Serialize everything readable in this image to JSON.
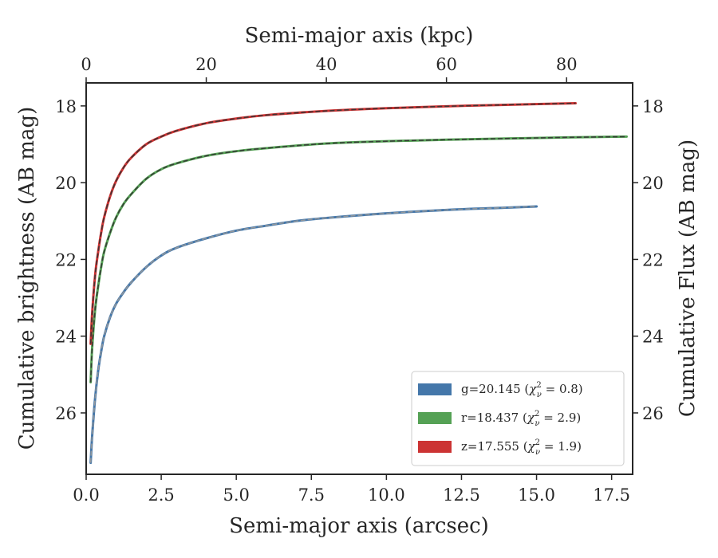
{
  "chart_data": {
    "type": "line",
    "xlabel": "Semi-major axis (arcsec)",
    "ylabel": "Cumulative brightness (AB mag)",
    "x2label": "Semi-major axis (kpc)",
    "y2label": "Cumulative Flux (AB mag)",
    "xlim": [
      0,
      18.2
    ],
    "ylim": [
      27.6,
      17.4
    ],
    "x2lim": [
      0,
      91
    ],
    "y_inverted": true,
    "grid": false,
    "legend_position": "lower right",
    "x_ticks": [
      "0.0",
      "2.5",
      "5.0",
      "7.5",
      "10.0",
      "12.5",
      "15.0",
      "17.5"
    ],
    "x_tick_values": [
      0,
      2.5,
      5,
      7.5,
      10,
      12.5,
      15,
      17.5
    ],
    "y_ticks": [
      "18",
      "20",
      "22",
      "24",
      "26"
    ],
    "y_tick_values": [
      18,
      20,
      22,
      24,
      26
    ],
    "x2_ticks": [
      "0",
      "20",
      "40",
      "60",
      "80"
    ],
    "x2_tick_values": [
      0,
      20,
      40,
      60,
      80
    ],
    "y2_ticks": [
      "18",
      "20",
      "22",
      "24",
      "26"
    ],
    "y2_tick_values": [
      18,
      20,
      22,
      24,
      26
    ],
    "series": [
      {
        "name": "g",
        "legend_main": "g=20.145 (",
        "legend_chi": "χ",
        "legend_sup": "2",
        "legend_sub": "ν",
        "legend_end": " = 0.8)",
        "color": "#4477aa",
        "model_color": "#999999",
        "x": [
          0.15,
          0.2,
          0.3,
          0.4,
          0.5,
          0.6,
          0.8,
          1.0,
          1.25,
          1.5,
          2.0,
          2.5,
          3.0,
          4.0,
          5.0,
          6.0,
          7.0,
          8.0,
          10.0,
          12.0,
          14.0,
          15.0
        ],
        "y": [
          27.3,
          26.6,
          25.6,
          24.9,
          24.4,
          24.0,
          23.5,
          23.15,
          22.85,
          22.6,
          22.2,
          21.9,
          21.7,
          21.45,
          21.25,
          21.12,
          21.0,
          20.92,
          20.8,
          20.71,
          20.65,
          20.62
        ]
      },
      {
        "name": "r",
        "legend_main": "r=18.437 (",
        "legend_chi": "χ",
        "legend_sup": "2",
        "legend_sub": "ν",
        "legend_end": " = 2.9)",
        "color": "#55a155",
        "model_color": "#333333",
        "x": [
          0.15,
          0.2,
          0.3,
          0.4,
          0.5,
          0.6,
          0.8,
          1.0,
          1.25,
          1.5,
          2.0,
          2.5,
          3.0,
          4.0,
          5.0,
          6.0,
          8.0,
          10.0,
          12.0,
          14.0,
          16.0,
          18.0
        ],
        "y": [
          25.2,
          24.3,
          23.3,
          22.7,
          22.2,
          21.8,
          21.3,
          20.9,
          20.55,
          20.3,
          19.9,
          19.65,
          19.5,
          19.3,
          19.18,
          19.1,
          18.98,
          18.92,
          18.88,
          18.85,
          18.82,
          18.8
        ]
      },
      {
        "name": "z",
        "legend_main": "z=17.555 (",
        "legend_chi": "χ",
        "legend_sup": "2",
        "legend_sub": "ν",
        "legend_end": " = 1.9)",
        "color": "#cc3333",
        "model_color": "#333333",
        "x": [
          0.15,
          0.2,
          0.3,
          0.4,
          0.5,
          0.6,
          0.8,
          1.0,
          1.25,
          1.5,
          2.0,
          2.5,
          3.0,
          4.0,
          5.0,
          6.0,
          8.0,
          10.0,
          12.0,
          14.0,
          16.3
        ],
        "y": [
          24.2,
          23.4,
          22.4,
          21.8,
          21.3,
          20.9,
          20.35,
          19.95,
          19.6,
          19.35,
          19.0,
          18.8,
          18.65,
          18.45,
          18.33,
          18.24,
          18.13,
          18.06,
          18.01,
          17.97,
          17.93
        ]
      }
    ]
  }
}
